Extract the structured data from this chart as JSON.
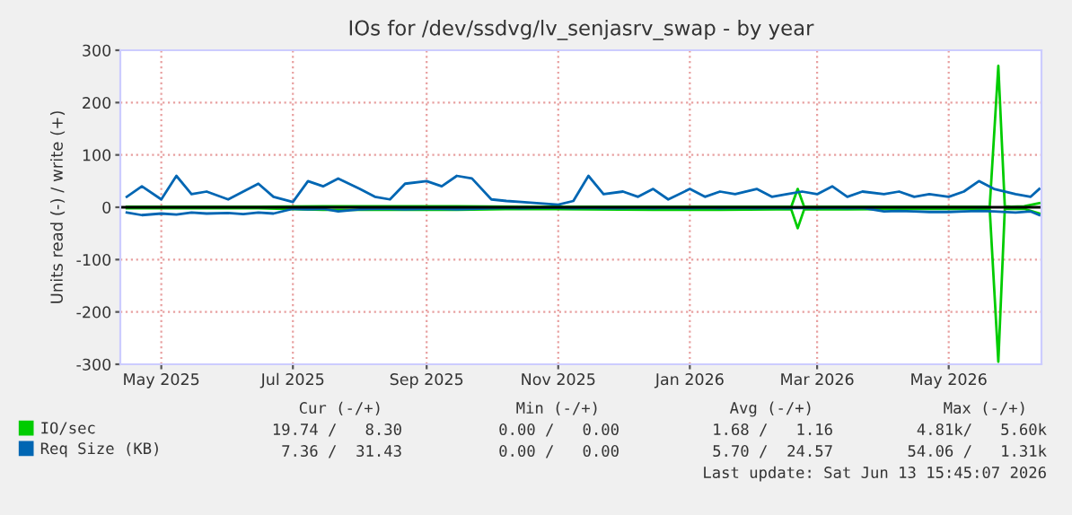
{
  "chart_data": {
    "type": "line",
    "title": "IOs for /dev/ssdvg/lv_senjasrv_swap - by year",
    "ylabel": "Units read (-) / write (+)",
    "xlim": [
      "2025-04-12",
      "2026-06-13"
    ],
    "xticks": [
      {
        "value": "2025-05-01",
        "label": "May 2025"
      },
      {
        "value": "2025-07-01",
        "label": "Jul 2025"
      },
      {
        "value": "2025-09-01",
        "label": "Sep 2025"
      },
      {
        "value": "2025-11-01",
        "label": "Nov 2025"
      },
      {
        "value": "2026-01-01",
        "label": "Jan 2026"
      },
      {
        "value": "2026-03-01",
        "label": "Mar 2026"
      },
      {
        "value": "2026-05-01",
        "label": "May 2026"
      }
    ],
    "ylim": [
      -300,
      300
    ],
    "yticks": [
      -300,
      -200,
      -100,
      0,
      100,
      200,
      300
    ],
    "grid": true,
    "legend": "bottom",
    "ref_lines": [
      {
        "axis": "y",
        "value": 0,
        "color": "#000000"
      }
    ],
    "series": [
      {
        "color": "#00cc00",
        "x": [
          "2025-04-15",
          "2025-05-15",
          "2025-06-15",
          "2025-07-15",
          "2025-08-15",
          "2025-09-15",
          "2025-10-15",
          "2025-11-15",
          "2025-12-15",
          "2026-01-15",
          "2026-02-10",
          "2026-02-17",
          "2026-02-20",
          "2026-02-23",
          "2026-03-01",
          "2026-03-15",
          "2026-04-15",
          "2026-05-01",
          "2026-05-20",
          "2026-05-24",
          "2026-05-27",
          "2026-05-30",
          "2026-06-05",
          "2026-06-12"
        ],
        "values": [
          -2,
          -2,
          -2,
          -5,
          -5,
          -5,
          -3,
          -4,
          -5,
          -5,
          -4,
          -4,
          -40,
          -4,
          -4,
          -4,
          -3,
          -3,
          -3,
          -295,
          -3,
          -3,
          -3,
          -12
        ]
      },
      {
        "name": "IO/sec",
        "color": "#00cc00",
        "x": [
          "2025-04-15",
          "2025-05-15",
          "2025-06-15",
          "2025-07-15",
          "2025-08-15",
          "2025-09-15",
          "2025-10-15",
          "2025-11-15",
          "2025-12-15",
          "2026-01-15",
          "2026-02-10",
          "2026-02-17",
          "2026-02-20",
          "2026-02-23",
          "2026-03-01",
          "2026-03-15",
          "2026-04-15",
          "2026-05-01",
          "2026-05-20",
          "2026-05-24",
          "2026-05-27",
          "2026-05-30",
          "2026-06-05",
          "2026-06-12"
        ],
        "values": [
          1,
          1,
          1,
          2,
          2,
          2,
          1,
          1,
          1,
          1,
          1,
          1,
          35,
          1,
          1,
          1,
          1,
          1,
          1,
          270,
          2,
          1,
          2,
          8
        ]
      },
      {
        "color": "#0066b3",
        "x": [
          "2025-04-15",
          "2025-04-22",
          "2025-05-01",
          "2025-05-08",
          "2025-05-15",
          "2025-05-22",
          "2025-06-01",
          "2025-06-08",
          "2025-06-15",
          "2025-06-22",
          "2025-07-01",
          "2025-07-08",
          "2025-07-15",
          "2025-07-22",
          "2025-08-01",
          "2025-08-08",
          "2025-08-15",
          "2025-08-22",
          "2025-09-01",
          "2025-09-08",
          "2025-09-15",
          "2025-09-22",
          "2025-10-01",
          "2025-10-08",
          "2025-10-15",
          "2025-10-22",
          "2025-11-01",
          "2025-11-08",
          "2025-11-15",
          "2025-11-22",
          "2025-12-01",
          "2025-12-08",
          "2025-12-15",
          "2025-12-22",
          "2026-01-01",
          "2026-01-08",
          "2026-01-15",
          "2026-01-22",
          "2026-02-01",
          "2026-02-08",
          "2026-02-15",
          "2026-02-22",
          "2026-03-01",
          "2026-03-08",
          "2026-03-15",
          "2026-03-22",
          "2026-04-01",
          "2026-04-08",
          "2026-04-15",
          "2026-04-22",
          "2026-05-01",
          "2026-05-08",
          "2026-05-15",
          "2026-05-22",
          "2026-06-01",
          "2026-06-08",
          "2026-06-12"
        ],
        "values": [
          -10,
          -15,
          -12,
          -14,
          -10,
          -12,
          -11,
          -13,
          -10,
          -12,
          -3,
          -4,
          -3,
          -8,
          -4,
          -3,
          -3,
          -4,
          -3,
          -3,
          -4,
          -3,
          -2,
          -1,
          -2,
          -1,
          -1,
          -2,
          -1,
          -2,
          -2,
          -1,
          -2,
          -1,
          -2,
          -1,
          -2,
          -1,
          -2,
          -1,
          -2,
          -1,
          -2,
          -1,
          -2,
          -1,
          -8,
          -7,
          -8,
          -9,
          -9,
          -8,
          -7,
          -8,
          -10,
          -8,
          -15
        ]
      },
      {
        "name": "Req Size (KB)",
        "color": "#0066b3",
        "x": [
          "2025-04-15",
          "2025-04-22",
          "2025-05-01",
          "2025-05-08",
          "2025-05-15",
          "2025-05-22",
          "2025-06-01",
          "2025-06-08",
          "2025-06-15",
          "2025-06-22",
          "2025-07-01",
          "2025-07-08",
          "2025-07-15",
          "2025-07-22",
          "2025-08-01",
          "2025-08-08",
          "2025-08-15",
          "2025-08-22",
          "2025-09-01",
          "2025-09-08",
          "2025-09-15",
          "2025-09-22",
          "2025-10-01",
          "2025-10-08",
          "2025-10-15",
          "2025-10-22",
          "2025-11-01",
          "2025-11-08",
          "2025-11-15",
          "2025-11-22",
          "2025-12-01",
          "2025-12-08",
          "2025-12-15",
          "2025-12-22",
          "2026-01-01",
          "2026-01-08",
          "2026-01-15",
          "2026-01-22",
          "2026-02-01",
          "2026-02-08",
          "2026-02-15",
          "2026-02-22",
          "2026-03-01",
          "2026-03-08",
          "2026-03-15",
          "2026-03-22",
          "2026-04-01",
          "2026-04-08",
          "2026-04-15",
          "2026-04-22",
          "2026-05-01",
          "2026-05-08",
          "2026-05-15",
          "2026-05-22",
          "2026-06-01",
          "2026-06-08",
          "2026-06-12"
        ],
        "values": [
          20,
          40,
          15,
          60,
          25,
          30,
          15,
          30,
          45,
          20,
          10,
          50,
          40,
          55,
          35,
          20,
          15,
          45,
          50,
          40,
          60,
          55,
          15,
          12,
          10,
          8,
          5,
          12,
          60,
          25,
          30,
          20,
          35,
          15,
          35,
          20,
          30,
          25,
          35,
          20,
          25,
          30,
          25,
          40,
          20,
          30,
          25,
          30,
          20,
          25,
          20,
          30,
          50,
          35,
          25,
          20,
          35
        ]
      }
    ],
    "annotations": [
      "Cur (-/+)",
      "Min (-/+)",
      "Avg (-/+)",
      "Max (-/+)",
      "19.74 /   8.30",
      "0.00 /   0.00",
      "1.68 /   1.16",
      "4.81k/   5.60k",
      "7.36 /  31.43",
      "0.00 /   0.00",
      "5.70 /  24.57",
      "54.06 /   1.31k",
      "Last update: Sat Jun 13 15:45:07 2026"
    ]
  }
}
